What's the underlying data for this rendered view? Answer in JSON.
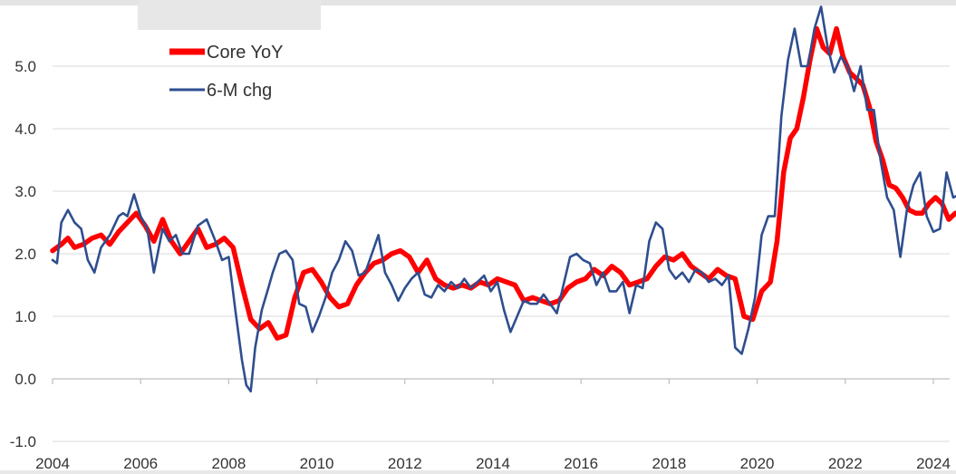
{
  "chart_data": {
    "type": "line",
    "title": "",
    "xlabel": "",
    "ylabel": "",
    "xlim": [
      2004.0,
      2024.6
    ],
    "ylim": [
      -1.0,
      5.9
    ],
    "yticks": [
      "-1.0",
      "0.0",
      "1.0",
      "2.0",
      "3.0",
      "4.0",
      "5.0"
    ],
    "xticks": [
      "2004",
      "2006",
      "2008",
      "2010",
      "2012",
      "2014",
      "2016",
      "2018",
      "2020",
      "2022",
      "2024"
    ],
    "grid": "horizontal",
    "legend_position": "top-left",
    "series": [
      {
        "name": "Core YoY",
        "color": "#ff0000",
        "x": [
          2004.0,
          2004.2,
          2004.35,
          2004.5,
          2004.7,
          2004.9,
          2005.1,
          2005.3,
          2005.5,
          2005.7,
          2005.9,
          2006.1,
          2006.3,
          2006.5,
          2006.7,
          2006.9,
          2007.1,
          2007.3,
          2007.5,
          2007.7,
          2007.9,
          2008.1,
          2008.3,
          2008.5,
          2008.7,
          2008.9,
          2009.1,
          2009.3,
          2009.5,
          2009.7,
          2009.9,
          2010.1,
          2010.3,
          2010.5,
          2010.7,
          2010.9,
          2011.1,
          2011.3,
          2011.5,
          2011.7,
          2011.9,
          2012.1,
          2012.3,
          2012.5,
          2012.7,
          2012.9,
          2013.1,
          2013.3,
          2013.5,
          2013.7,
          2013.9,
          2014.1,
          2014.3,
          2014.5,
          2014.7,
          2014.9,
          2015.1,
          2015.3,
          2015.5,
          2015.7,
          2015.9,
          2016.1,
          2016.3,
          2016.5,
          2016.7,
          2016.9,
          2017.1,
          2017.3,
          2017.5,
          2017.7,
          2017.9,
          2018.1,
          2018.3,
          2018.5,
          2018.7,
          2018.9,
          2019.1,
          2019.3,
          2019.5,
          2019.7,
          2019.9,
          2020.1,
          2020.3,
          2020.45,
          2020.6,
          2020.75,
          2020.9,
          2021.05,
          2021.2,
          2021.35,
          2021.5,
          2021.65,
          2021.8,
          2021.95,
          2022.1,
          2022.25,
          2022.4,
          2022.55,
          2022.7,
          2022.85,
          2023.0,
          2023.15,
          2023.3,
          2023.45,
          2023.6,
          2023.75,
          2023.9,
          2024.05,
          2024.2,
          2024.35,
          2024.5
        ],
        "values": [
          2.05,
          2.15,
          2.25,
          2.1,
          2.15,
          2.25,
          2.3,
          2.15,
          2.35,
          2.5,
          2.65,
          2.45,
          2.2,
          2.55,
          2.2,
          2.0,
          2.2,
          2.4,
          2.1,
          2.15,
          2.25,
          2.1,
          1.5,
          0.95,
          0.8,
          0.9,
          0.65,
          0.7,
          1.3,
          1.7,
          1.75,
          1.55,
          1.3,
          1.15,
          1.2,
          1.5,
          1.7,
          1.85,
          1.9,
          2.0,
          2.05,
          1.95,
          1.7,
          1.9,
          1.6,
          1.5,
          1.45,
          1.5,
          1.45,
          1.55,
          1.5,
          1.6,
          1.55,
          1.5,
          1.25,
          1.3,
          1.25,
          1.2,
          1.25,
          1.45,
          1.55,
          1.6,
          1.75,
          1.65,
          1.8,
          1.7,
          1.5,
          1.55,
          1.6,
          1.8,
          1.95,
          1.9,
          2.0,
          1.8,
          1.7,
          1.6,
          1.75,
          1.65,
          1.6,
          1.0,
          0.95,
          1.4,
          1.55,
          2.2,
          3.3,
          3.85,
          4.0,
          4.5,
          5.1,
          5.6,
          5.3,
          5.2,
          5.6,
          5.15,
          4.9,
          4.8,
          4.7,
          4.35,
          3.8,
          3.5,
          3.1,
          3.05,
          2.9,
          2.7,
          2.65,
          2.65,
          2.8,
          2.9,
          2.8,
          2.55,
          2.65
        ]
      },
      {
        "name": "6-M chg",
        "color": "#2e4e8f",
        "x": [
          2004.0,
          2004.1,
          2004.2,
          2004.35,
          2004.5,
          2004.65,
          2004.8,
          2004.95,
          2005.1,
          2005.3,
          2005.5,
          2005.6,
          2005.7,
          2005.85,
          2006.0,
          2006.15,
          2006.3,
          2006.5,
          2006.65,
          2006.8,
          2006.95,
          2007.1,
          2007.3,
          2007.5,
          2007.7,
          2007.85,
          2008.0,
          2008.15,
          2008.3,
          2008.4,
          2008.5,
          2008.6,
          2008.75,
          2008.9,
          2009.0,
          2009.15,
          2009.3,
          2009.45,
          2009.6,
          2009.75,
          2009.9,
          2010.05,
          2010.2,
          2010.35,
          2010.5,
          2010.65,
          2010.8,
          2010.95,
          2011.1,
          2011.25,
          2011.4,
          2011.55,
          2011.7,
          2011.85,
          2012.0,
          2012.15,
          2012.3,
          2012.45,
          2012.6,
          2012.75,
          2012.9,
          2013.05,
          2013.2,
          2013.35,
          2013.5,
          2013.65,
          2013.8,
          2013.95,
          2014.1,
          2014.25,
          2014.4,
          2014.55,
          2014.7,
          2014.85,
          2015.0,
          2015.15,
          2015.3,
          2015.45,
          2015.6,
          2015.75,
          2015.9,
          2016.05,
          2016.2,
          2016.35,
          2016.5,
          2016.65,
          2016.8,
          2016.95,
          2017.1,
          2017.25,
          2017.4,
          2017.55,
          2017.7,
          2017.85,
          2018.0,
          2018.15,
          2018.3,
          2018.45,
          2018.6,
          2018.75,
          2018.9,
          2019.05,
          2019.2,
          2019.35,
          2019.5,
          2019.65,
          2019.8,
          2019.95,
          2020.1,
          2020.25,
          2020.4,
          2020.55,
          2020.7,
          2020.85,
          2021.0,
          2021.15,
          2021.3,
          2021.45,
          2021.6,
          2021.75,
          2021.9,
          2022.05,
          2022.2,
          2022.35,
          2022.5,
          2022.65,
          2022.8,
          2022.95,
          2023.1,
          2023.25,
          2023.4,
          2023.55,
          2023.7,
          2023.85,
          2024.0,
          2024.15,
          2024.3,
          2024.45,
          2024.6
        ],
        "values": [
          1.9,
          1.85,
          2.5,
          2.7,
          2.5,
          2.4,
          1.9,
          1.7,
          2.1,
          2.3,
          2.6,
          2.65,
          2.6,
          2.95,
          2.6,
          2.4,
          1.7,
          2.4,
          2.2,
          2.3,
          2.0,
          2.0,
          2.45,
          2.55,
          2.2,
          1.9,
          1.95,
          1.1,
          0.3,
          -0.1,
          -0.2,
          0.5,
          1.1,
          1.45,
          1.7,
          2.0,
          2.05,
          1.9,
          1.2,
          1.15,
          0.75,
          1.0,
          1.3,
          1.7,
          1.9,
          2.2,
          2.05,
          1.65,
          1.7,
          2.0,
          2.3,
          1.7,
          1.5,
          1.25,
          1.45,
          1.6,
          1.7,
          1.35,
          1.3,
          1.5,
          1.4,
          1.55,
          1.45,
          1.6,
          1.45,
          1.55,
          1.65,
          1.4,
          1.55,
          1.1,
          0.75,
          1.0,
          1.25,
          1.2,
          1.2,
          1.35,
          1.2,
          1.05,
          1.5,
          1.95,
          2.0,
          1.9,
          1.85,
          1.5,
          1.7,
          1.4,
          1.4,
          1.55,
          1.05,
          1.5,
          1.45,
          2.2,
          2.5,
          2.4,
          1.75,
          1.6,
          1.7,
          1.55,
          1.75,
          1.7,
          1.55,
          1.6,
          1.5,
          1.65,
          0.5,
          0.4,
          0.8,
          1.3,
          2.3,
          2.6,
          2.6,
          4.2,
          5.1,
          5.6,
          5.0,
          5.0,
          5.6,
          5.95,
          5.3,
          4.9,
          5.15,
          5.0,
          4.6,
          5.0,
          4.3,
          4.3,
          3.5,
          2.9,
          2.7,
          1.95,
          2.7,
          3.1,
          3.3,
          2.6,
          2.35,
          2.4,
          3.3,
          2.9,
          2.95
        ]
      }
    ]
  }
}
